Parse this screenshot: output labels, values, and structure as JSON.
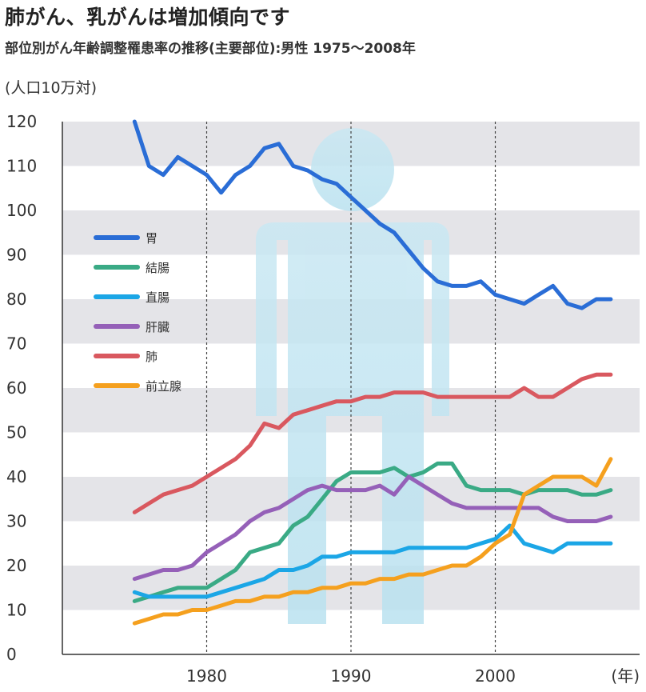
{
  "chart_data": {
    "type": "line",
    "title": "肺がん、乳がんは増加傾向です",
    "subtitle": "部位別がん年齢調整罹患率の推移(主要部位):男性 1975〜2008年",
    "ylabel": "(人口10万対)",
    "xlabel": "(年)",
    "xlim": [
      1970,
      2010
    ],
    "ylim": [
      0,
      120
    ],
    "x_ticks": [
      1980,
      1990,
      2000
    ],
    "x_tick_labels": [
      "1980",
      "1990",
      "2000"
    ],
    "y_ticks": [
      0,
      10,
      20,
      30,
      40,
      50,
      60,
      70,
      80,
      90,
      100,
      110,
      120
    ],
    "y_tick_labels": [
      "0",
      "10",
      "20",
      "30",
      "40",
      "50",
      "60",
      "70",
      "80",
      "90",
      "100",
      "110",
      "120"
    ],
    "grid": "alternating horizontal bands; dashed vertical lines at 1980, 1990, 2000",
    "legend_position": "left-center",
    "x": [
      1975,
      1976,
      1977,
      1978,
      1979,
      1980,
      1981,
      1982,
      1983,
      1984,
      1985,
      1986,
      1987,
      1988,
      1989,
      1990,
      1991,
      1992,
      1993,
      1994,
      1995,
      1996,
      1997,
      1998,
      1999,
      2000,
      2001,
      2002,
      2003,
      2004,
      2005,
      2006,
      2007,
      2008
    ],
    "series": [
      {
        "name": "胃",
        "color": "#2a6dd6",
        "values": [
          120,
          110,
          108,
          112,
          110,
          108,
          104,
          108,
          110,
          114,
          115,
          110,
          109,
          107,
          106,
          103,
          100,
          97,
          95,
          91,
          87,
          84,
          83,
          83,
          84,
          81,
          80,
          79,
          81,
          83,
          79,
          78,
          80,
          80
        ]
      },
      {
        "name": "結腸",
        "color": "#3aaa85",
        "values": [
          12,
          13,
          14,
          15,
          15,
          15,
          17,
          19,
          23,
          24,
          25,
          29,
          31,
          35,
          39,
          41,
          41,
          41,
          42,
          40,
          41,
          43,
          43,
          38,
          37,
          37,
          37,
          36,
          37,
          37,
          37,
          36,
          36,
          37
        ]
      },
      {
        "name": "直腸",
        "color": "#1ba6e6",
        "values": [
          14,
          13,
          13,
          13,
          13,
          13,
          14,
          15,
          16,
          17,
          19,
          19,
          20,
          22,
          22,
          23,
          23,
          23,
          23,
          24,
          24,
          24,
          24,
          24,
          25,
          26,
          29,
          25,
          24,
          23,
          25,
          25,
          25,
          25
        ]
      },
      {
        "name": "肝臓",
        "color": "#9560b8",
        "values": [
          17,
          18,
          19,
          19,
          20,
          23,
          25,
          27,
          30,
          32,
          33,
          35,
          37,
          38,
          37,
          37,
          37,
          38,
          36,
          40,
          38,
          36,
          34,
          33,
          33,
          33,
          33,
          33,
          33,
          31,
          30,
          30,
          30,
          31
        ]
      },
      {
        "name": "肺",
        "color": "#d9585f",
        "values": [
          32,
          34,
          36,
          37,
          38,
          40,
          42,
          44,
          47,
          52,
          51,
          54,
          55,
          56,
          57,
          57,
          58,
          58,
          59,
          59,
          59,
          58,
          58,
          58,
          58,
          58,
          58,
          60,
          58,
          58,
          60,
          62,
          63,
          63
        ]
      },
      {
        "name": "前立腺",
        "color": "#f5a01e",
        "values": [
          7,
          8,
          9,
          9,
          10,
          10,
          11,
          12,
          12,
          13,
          13,
          14,
          14,
          15,
          15,
          16,
          16,
          17,
          17,
          18,
          18,
          19,
          20,
          20,
          22,
          25,
          27,
          36,
          38,
          40,
          40,
          40,
          38,
          44
        ]
      }
    ]
  }
}
